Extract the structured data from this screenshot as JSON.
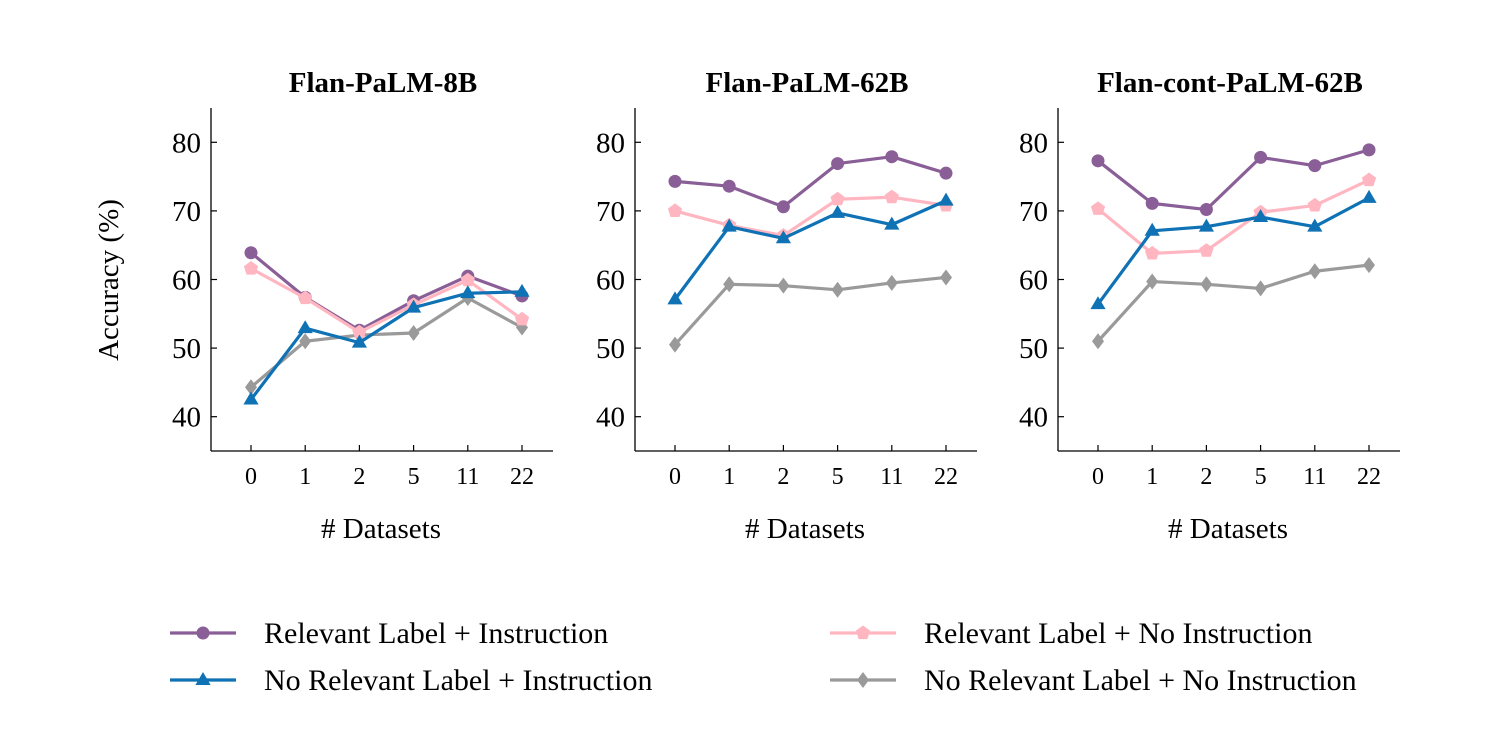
{
  "figure": {
    "ylabel": "Accuracy (%)",
    "xlabel": "# Datasets"
  },
  "legend": [
    {
      "label": "Relevant Label + Instruction",
      "color": "#8a5f97",
      "marker": "circle"
    },
    {
      "label": "Relevant Label + No Instruction",
      "color": "#ffb6c1",
      "marker": "pentagon"
    },
    {
      "label": "No Relevant Label + Instruction",
      "color": "#0e72b5",
      "marker": "triangle"
    },
    {
      "label": "No Relevant Label + No Instruction",
      "color": "#9a9a9a",
      "marker": "diamond"
    }
  ],
  "chart_data": [
    {
      "type": "line",
      "title": "Flan-PaLM-8B",
      "xlabel": "# Datasets",
      "ylabel": "Accuracy (%)",
      "categories": [
        "0",
        "1",
        "2",
        "5",
        "11",
        "22"
      ],
      "ylim": [
        35,
        85
      ],
      "yticks": [
        40,
        50,
        60,
        70,
        80
      ],
      "grid": false,
      "series": [
        {
          "name": "Relevant Label + Instruction",
          "color": "#8a5f97",
          "marker": "circle",
          "values": [
            63.9,
            57.4,
            52.6,
            56.9,
            60.5,
            57.6
          ]
        },
        {
          "name": "Relevant Label + No Instruction",
          "color": "#ffb6c1",
          "marker": "pentagon",
          "values": [
            61.6,
            57.3,
            52.3,
            56.3,
            59.9,
            54.2
          ]
        },
        {
          "name": "No Relevant Label + Instruction",
          "color": "#0e72b5",
          "marker": "triangle",
          "values": [
            42.5,
            52.9,
            50.8,
            55.9,
            58.0,
            58.2
          ]
        },
        {
          "name": "No Relevant Label + No Instruction",
          "color": "#9a9a9a",
          "marker": "diamond",
          "values": [
            44.3,
            51.0,
            51.9,
            52.2,
            57.3,
            53.0
          ]
        }
      ]
    },
    {
      "type": "line",
      "title": "Flan-PaLM-62B",
      "xlabel": "# Datasets",
      "ylabel": "",
      "categories": [
        "0",
        "1",
        "2",
        "5",
        "11",
        "22"
      ],
      "ylim": [
        35,
        85
      ],
      "yticks": [
        40,
        50,
        60,
        70,
        80
      ],
      "grid": false,
      "series": [
        {
          "name": "Relevant Label + Instruction",
          "color": "#8a5f97",
          "marker": "circle",
          "values": [
            74.3,
            73.6,
            70.6,
            76.9,
            77.9,
            75.5
          ]
        },
        {
          "name": "Relevant Label + No Instruction",
          "color": "#ffb6c1",
          "marker": "pentagon",
          "values": [
            70.0,
            67.9,
            66.4,
            71.7,
            72.0,
            70.8
          ]
        },
        {
          "name": "No Relevant Label + Instruction",
          "color": "#0e72b5",
          "marker": "triangle",
          "values": [
            57.1,
            67.7,
            66.0,
            69.7,
            68.0,
            71.5
          ]
        },
        {
          "name": "No Relevant Label + No Instruction",
          "color": "#9a9a9a",
          "marker": "diamond",
          "values": [
            50.5,
            59.3,
            59.1,
            58.5,
            59.5,
            60.3
          ]
        }
      ]
    },
    {
      "type": "line",
      "title": "Flan-cont-PaLM-62B",
      "xlabel": "# Datasets",
      "ylabel": "",
      "categories": [
        "0",
        "1",
        "2",
        "5",
        "11",
        "22"
      ],
      "ylim": [
        35,
        85
      ],
      "yticks": [
        40,
        50,
        60,
        70,
        80
      ],
      "grid": false,
      "series": [
        {
          "name": "Relevant Label + Instruction",
          "color": "#8a5f97",
          "marker": "circle",
          "values": [
            77.3,
            71.1,
            70.2,
            77.8,
            76.6,
            78.9
          ]
        },
        {
          "name": "Relevant Label + No Instruction",
          "color": "#ffb6c1",
          "marker": "pentagon",
          "values": [
            70.3,
            63.8,
            64.2,
            69.8,
            70.8,
            74.5
          ]
        },
        {
          "name": "No Relevant Label + Instruction",
          "color": "#0e72b5",
          "marker": "triangle",
          "values": [
            56.4,
            67.1,
            67.7,
            69.1,
            67.7,
            71.9
          ]
        },
        {
          "name": "No Relevant Label + No Instruction",
          "color": "#9a9a9a",
          "marker": "diamond",
          "values": [
            51.0,
            59.7,
            59.3,
            58.7,
            61.2,
            62.1
          ]
        }
      ]
    }
  ]
}
